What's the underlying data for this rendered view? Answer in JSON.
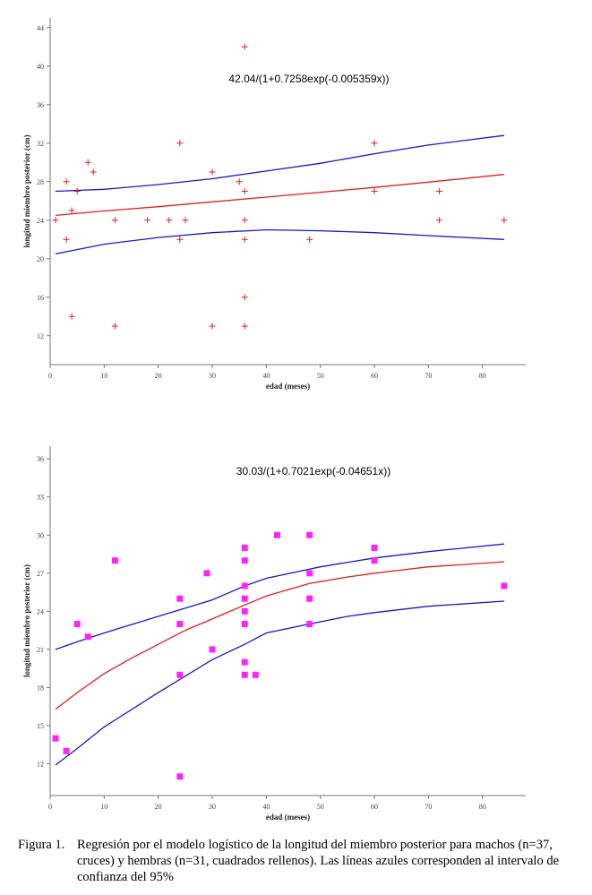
{
  "chart_data": [
    {
      "type": "scatter",
      "title": "42.04/(1+0.7258exp(-0.005359x))",
      "xlabel": "edad (meses)",
      "ylabel": "longitud miembro posterior (cm)",
      "xlim": [
        0,
        88
      ],
      "ylim": [
        9,
        45
      ],
      "xticks": [
        "0",
        "10",
        "20",
        "30",
        "40",
        "50",
        "60",
        "70",
        "80"
      ],
      "yticks": [
        "12",
        "16",
        "20",
        "24",
        "28",
        "32",
        "36",
        "40",
        "44"
      ],
      "marker": "cross",
      "colors": {
        "points": "#e0201c",
        "fit": "#e0201c",
        "ci": "#1818c8"
      },
      "series": [
        {
          "points": [
            [
              1,
              24
            ],
            [
              3,
              28
            ],
            [
              3,
              22
            ],
            [
              4,
              25
            ],
            [
              4,
              14
            ],
            [
              5,
              27
            ],
            [
              7,
              30
            ],
            [
              8,
              29
            ],
            [
              12,
              24
            ],
            [
              12,
              13
            ],
            [
              18,
              24
            ],
            [
              22,
              24
            ],
            [
              24,
              32
            ],
            [
              24,
              22
            ],
            [
              25,
              24
            ],
            [
              30,
              29
            ],
            [
              30,
              13
            ],
            [
              35,
              28
            ],
            [
              36,
              42
            ],
            [
              36,
              27
            ],
            [
              36,
              24
            ],
            [
              36,
              22
            ],
            [
              36,
              16
            ],
            [
              36,
              13
            ],
            [
              48,
              22
            ],
            [
              60,
              32
            ],
            [
              60,
              27
            ],
            [
              72,
              27
            ],
            [
              72,
              24
            ],
            [
              84,
              24
            ]
          ]
        }
      ],
      "fit_curve": [
        [
          1,
          24.5
        ],
        [
          10,
          24.95
        ],
        [
          20,
          25.4
        ],
        [
          30,
          25.9
        ],
        [
          40,
          26.4
        ],
        [
          50,
          26.9
        ],
        [
          60,
          27.4
        ],
        [
          70,
          27.95
        ],
        [
          84,
          28.75
        ]
      ],
      "ci_upper": [
        [
          1,
          27
        ],
        [
          10,
          27.2
        ],
        [
          20,
          27.7
        ],
        [
          30,
          28.3
        ],
        [
          40,
          29.1
        ],
        [
          50,
          29.9
        ],
        [
          60,
          30.9
        ],
        [
          70,
          31.8
        ],
        [
          84,
          32.8
        ]
      ],
      "ci_lower": [
        [
          1,
          20.5
        ],
        [
          10,
          21.5
        ],
        [
          20,
          22.2
        ],
        [
          30,
          22.7
        ],
        [
          40,
          23
        ],
        [
          50,
          22.9
        ],
        [
          60,
          22.7
        ],
        [
          70,
          22.4
        ],
        [
          84,
          22
        ]
      ]
    },
    {
      "type": "scatter",
      "title": "30.03/(1+0.7021exp(-0.04651x))",
      "xlabel": "edad (meses)",
      "ylabel": "longitud miembro posterior (cm)",
      "xlim": [
        0,
        88
      ],
      "ylim": [
        9.5,
        37
      ],
      "xticks": [
        "0",
        "10",
        "20",
        "30",
        "40",
        "50",
        "60",
        "70",
        "80"
      ],
      "yticks": [
        "12",
        "15",
        "18",
        "21",
        "24",
        "27",
        "30",
        "33",
        "36"
      ],
      "marker": "square",
      "colors": {
        "points": "#ff22ff",
        "fit": "#e0201c",
        "ci": "#1818c8"
      },
      "series": [
        {
          "points": [
            [
              1,
              14
            ],
            [
              3,
              13
            ],
            [
              5,
              23
            ],
            [
              7,
              22
            ],
            [
              12,
              28
            ],
            [
              24,
              25
            ],
            [
              24,
              23
            ],
            [
              24,
              19
            ],
            [
              24,
              11
            ],
            [
              29,
              27
            ],
            [
              30,
              21
            ],
            [
              36,
              29
            ],
            [
              36,
              28
            ],
            [
              36,
              26
            ],
            [
              36,
              25
            ],
            [
              36,
              24
            ],
            [
              36,
              23
            ],
            [
              36,
              20
            ],
            [
              36,
              19
            ],
            [
              38,
              19
            ],
            [
              42,
              30
            ],
            [
              48,
              30
            ],
            [
              48,
              27
            ],
            [
              48,
              25
            ],
            [
              48,
              23
            ],
            [
              60,
              29
            ],
            [
              60,
              28
            ],
            [
              84,
              26
            ]
          ]
        }
      ],
      "fit_curve": [
        [
          1,
          16.3
        ],
        [
          5,
          17.6
        ],
        [
          10,
          19.1
        ],
        [
          15,
          20.3
        ],
        [
          20,
          21.4
        ],
        [
          25,
          22.5
        ],
        [
          30,
          23.4
        ],
        [
          36,
          24.5
        ],
        [
          40,
          25.2
        ],
        [
          48,
          26.2
        ],
        [
          55,
          26.7
        ],
        [
          60,
          27
        ],
        [
          70,
          27.5
        ],
        [
          84,
          27.9
        ]
      ],
      "ci_upper": [
        [
          1,
          21
        ],
        [
          5,
          21.6
        ],
        [
          10,
          22.3
        ],
        [
          20,
          23.6
        ],
        [
          30,
          24.9
        ],
        [
          36,
          26
        ],
        [
          40,
          26.6
        ],
        [
          50,
          27.5
        ],
        [
          60,
          28.2
        ],
        [
          70,
          28.7
        ],
        [
          84,
          29.3
        ]
      ],
      "ci_lower": [
        [
          1,
          11.9
        ],
        [
          5,
          13.2
        ],
        [
          10,
          14.9
        ],
        [
          20,
          17.6
        ],
        [
          30,
          20.2
        ],
        [
          36,
          21.4
        ],
        [
          40,
          22.3
        ],
        [
          48,
          23
        ],
        [
          55,
          23.6
        ],
        [
          60,
          23.9
        ],
        [
          70,
          24.4
        ],
        [
          84,
          24.8
        ]
      ]
    }
  ],
  "caption": {
    "figure_label": "Figura 1.",
    "text": "Regresión por el modelo logístico de la longitud del miembro posterior para machos (n=37, cruces) y hembras (n=31, cuadrados rellenos). Las líneas azules corresponden al intervalo de confianza del 95%"
  }
}
